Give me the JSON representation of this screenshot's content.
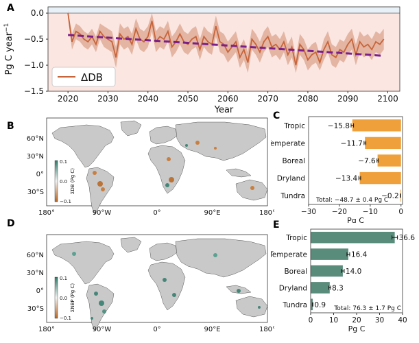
{
  "panels": {
    "a": "A",
    "b": "B",
    "c": "C",
    "d": "D",
    "e": "E"
  },
  "chart_data": [
    {
      "id": "A",
      "type": "line",
      "xlabel": "Year",
      "ylabel": "Pg C year",
      "ylabel_sup": "−1",
      "legend": "ΔDB",
      "legend_placement": "bottom-left",
      "xlim": [
        2015,
        2103
      ],
      "ylim": [
        -1.5,
        0.12
      ],
      "xticks": [
        "2020",
        "2030",
        "2040",
        "2050",
        "2060",
        "2070",
        "2080",
        "2090",
        "2100"
      ],
      "xtick_values": [
        2020,
        2030,
        2040,
        2050,
        2060,
        2070,
        2080,
        2090,
        2100
      ],
      "yticks": [
        "0.0",
        "−0.5",
        "−1.0",
        "−1.5"
      ],
      "ytick_values": [
        0,
        -0.5,
        -1.0,
        -1.5
      ],
      "series": [
        {
          "name": "ΔDB",
          "color": "#c8643a",
          "x": [
            2020,
            2021,
            2022,
            2023,
            2024,
            2025,
            2026,
            2027,
            2028,
            2029,
            2030,
            2031,
            2032,
            2033,
            2034,
            2035,
            2036,
            2037,
            2038,
            2039,
            2040,
            2041,
            2042,
            2043,
            2044,
            2045,
            2046,
            2047,
            2048,
            2049,
            2050,
            2051,
            2052,
            2053,
            2054,
            2055,
            2056,
            2057,
            2058,
            2059,
            2060,
            2061,
            2062,
            2063,
            2064,
            2065,
            2066,
            2067,
            2068,
            2069,
            2070,
            2071,
            2072,
            2073,
            2074,
            2075,
            2076,
            2077,
            2078,
            2079,
            2080,
            2081,
            2082,
            2083,
            2084,
            2085,
            2086,
            2087,
            2088,
            2089,
            2090,
            2091,
            2092,
            2093,
            2094,
            2095,
            2096,
            2097,
            2098,
            2099
          ],
          "y": [
            0.0,
            -0.55,
            -0.35,
            -0.4,
            -0.5,
            -0.55,
            -0.45,
            -0.6,
            -0.35,
            -0.45,
            -0.5,
            -0.55,
            -0.85,
            -0.4,
            -0.5,
            -0.45,
            -0.6,
            -0.3,
            -0.5,
            -0.55,
            -0.45,
            -0.15,
            -0.55,
            -0.45,
            -0.5,
            -0.35,
            -0.65,
            -0.55,
            -0.4,
            -0.55,
            -0.6,
            -0.5,
            -0.45,
            -0.7,
            -0.45,
            -0.55,
            -0.6,
            -0.25,
            -0.55,
            -0.6,
            -0.75,
            -0.65,
            -0.55,
            -0.85,
            -0.7,
            -0.95,
            -0.5,
            -0.6,
            -0.75,
            -0.55,
            -0.45,
            -0.65,
            -0.6,
            -0.7,
            -0.55,
            -0.8,
            -0.65,
            -1.0,
            -0.6,
            -0.7,
            -0.9,
            -0.8,
            -0.75,
            -0.95,
            -0.7,
            -0.55,
            -0.8,
            -0.85,
            -0.7,
            -0.75,
            -0.6,
            -0.5,
            -0.8,
            -0.55,
            -0.65,
            -0.6,
            -0.7,
            -0.55,
            -0.6,
            -0.5
          ],
          "lower": [
            -0.1,
            -0.7,
            -0.5,
            -0.55,
            -0.65,
            -0.7,
            -0.6,
            -0.75,
            -0.5,
            -0.65,
            -0.7,
            -0.75,
            -1.05,
            -0.6,
            -0.7,
            -0.65,
            -0.8,
            -0.5,
            -0.7,
            -0.75,
            -0.65,
            -0.35,
            -0.75,
            -0.65,
            -0.7,
            -0.55,
            -0.85,
            -0.75,
            -0.6,
            -0.75,
            -0.8,
            -0.7,
            -0.65,
            -0.9,
            -0.65,
            -0.75,
            -0.8,
            -0.45,
            -0.75,
            -0.8,
            -0.95,
            -0.85,
            -0.75,
            -1.05,
            -0.9,
            -1.15,
            -0.7,
            -0.8,
            -0.95,
            -0.75,
            -0.65,
            -0.85,
            -0.8,
            -0.9,
            -0.75,
            -1.0,
            -0.85,
            -1.15,
            -0.8,
            -0.9,
            -1.1,
            -1.0,
            -0.95,
            -1.1,
            -0.9,
            -0.75,
            -1.0,
            -1.05,
            -0.9,
            -0.95,
            -0.8,
            -0.7,
            -1.0,
            -0.75,
            -0.85,
            -0.8,
            -0.9,
            -0.75,
            -0.8,
            -0.7
          ],
          "upper": [
            0.05,
            -0.4,
            -0.2,
            -0.25,
            -0.35,
            -0.4,
            -0.3,
            -0.45,
            -0.2,
            -0.25,
            -0.3,
            -0.35,
            -0.65,
            -0.2,
            -0.3,
            -0.25,
            -0.4,
            -0.1,
            -0.3,
            -0.35,
            -0.25,
            0.0,
            -0.35,
            -0.25,
            -0.3,
            -0.15,
            -0.45,
            -0.35,
            -0.2,
            -0.35,
            -0.4,
            -0.3,
            -0.25,
            -0.5,
            -0.25,
            -0.35,
            -0.4,
            -0.05,
            -0.35,
            -0.4,
            -0.55,
            -0.45,
            -0.35,
            -0.65,
            -0.5,
            -0.75,
            -0.3,
            -0.4,
            -0.55,
            -0.35,
            -0.25,
            -0.45,
            -0.4,
            -0.5,
            -0.35,
            -0.6,
            -0.45,
            -0.85,
            -0.4,
            -0.5,
            -0.7,
            -0.6,
            -0.55,
            -0.8,
            -0.5,
            -0.35,
            -0.6,
            -0.65,
            -0.5,
            -0.55,
            -0.4,
            -0.3,
            -0.6,
            -0.35,
            -0.45,
            -0.4,
            -0.5,
            -0.35,
            -0.4,
            -0.3
          ]
        }
      ],
      "trend": {
        "x": [
          2020,
          2099
        ],
        "y": [
          -0.42,
          -0.82
        ],
        "color": "#7b1f8a"
      },
      "colors": {
        "positive_band": "#e8f1f7",
        "negative_band": "#fbe6e1",
        "line": "#c8643a",
        "band": "#d9a088",
        "trend": "#7b1f8a"
      }
    },
    {
      "id": "C",
      "type": "bar",
      "orientation": "horizontal",
      "categories": [
        "Tropic",
        "Temperate",
        "Boreal",
        "Dryland",
        "Tundra"
      ],
      "values": [
        -15.8,
        -11.7,
        -7.6,
        -13.4,
        -0.2
      ],
      "value_labels": [
        "−15.8",
        "−11.7",
        "−7.6",
        "−13.4",
        "−0.2"
      ],
      "errors": [
        0.4,
        0.3,
        0.2,
        0.3,
        0.05
      ],
      "xlabel": "Pg C",
      "xlim": [
        -30,
        0.5
      ],
      "xticks": [
        "−30",
        "−20",
        "−10",
        "0"
      ],
      "xtick_values": [
        -30,
        -20,
        -10,
        0
      ],
      "total_label": "Total: −48.7 ± 0.4 Pg C",
      "color": "#efa03a"
    },
    {
      "id": "E",
      "type": "bar",
      "orientation": "horizontal",
      "categories": [
        "Tropic",
        "Temperate",
        "Boreal",
        "Dryland",
        "Tundra"
      ],
      "values": [
        36.6,
        16.4,
        14.0,
        8.3,
        0.9
      ],
      "value_labels": [
        "36.6",
        "16.4",
        "14.0",
        "8.3",
        "0.9"
      ],
      "errors": [
        1.2,
        0.6,
        0.6,
        0.4,
        0.1
      ],
      "xlabel": "Pg C",
      "xlim": [
        0,
        40
      ],
      "xticks": [
        "0",
        "10",
        "20",
        "30",
        "40"
      ],
      "xtick_values": [
        0,
        10,
        20,
        30,
        40
      ],
      "total_label": "Total: 76.3 ± 1.7 Pg C",
      "color": "#5a8c7c"
    }
  ],
  "map_b": {
    "lat_ticks": [
      "60°N",
      "30°N",
      "0°",
      "30°S"
    ],
    "lon_ticks": [
      "180°",
      "90°W",
      "0°",
      "90°E",
      "180°"
    ],
    "colorbar_label": "ΣDB (Pg C)",
    "colorbar_ticks": [
      "0.1",
      "0.0",
      "−0.1"
    ],
    "colorbar_top": "#2f7a6a",
    "colorbar_bottom": "#b8651e"
  },
  "map_d": {
    "lat_ticks": [
      "60°N",
      "30°N",
      "0°",
      "30°S"
    ],
    "lon_ticks": [
      "180°",
      "90°W",
      "0°",
      "90°E",
      "180°"
    ],
    "colorbar_label": "ΣNBP (Pg C)",
    "colorbar_ticks": [
      "0.1",
      "0.0",
      "−0.1"
    ],
    "colorbar_top": "#2f7a6a",
    "colorbar_bottom": "#b8651e"
  }
}
